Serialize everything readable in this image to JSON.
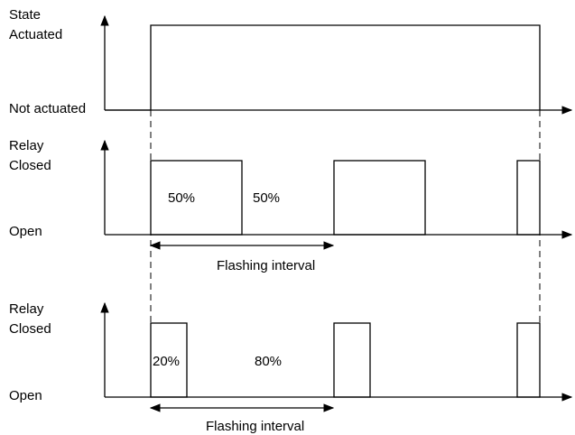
{
  "panels": [
    {
      "title": "State",
      "high_label": "Actuated",
      "low_label": "Not actuated"
    },
    {
      "title": "Relay",
      "high_label": "Closed",
      "low_label": "Open",
      "duty_on": "50%",
      "duty_off": "50%",
      "interval_label": "Flashing interval"
    },
    {
      "title": "Relay",
      "high_label": "Closed",
      "low_label": "Open",
      "duty_on": "20%",
      "duty_off": "80%",
      "interval_label": "Flashing interval"
    }
  ]
}
